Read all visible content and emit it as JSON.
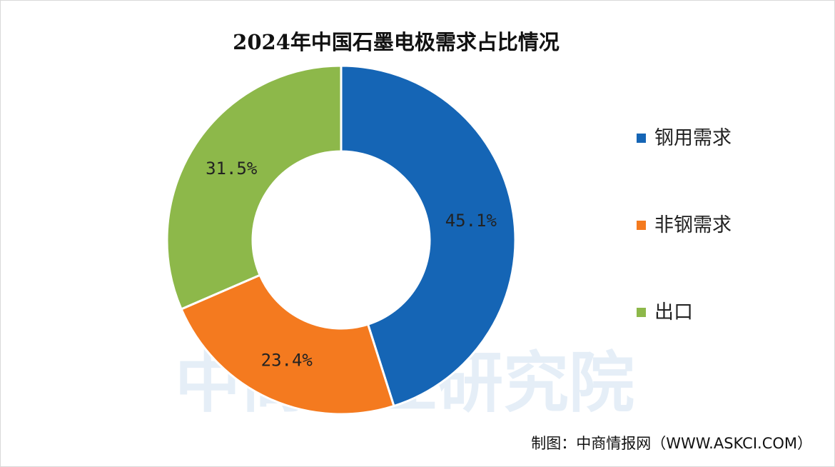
{
  "title": "2024年中国石墨电极需求占比情况",
  "watermark": "中商产业研究院",
  "source": "制图：中商情报网（WWW.ASKCI.COM）",
  "chart_data": {
    "type": "pie",
    "donut": true,
    "title": "2024年中国石墨电极需求占比情况",
    "categories": [
      "钢用需求",
      "非钢需求",
      "出口"
    ],
    "values": [
      45.1,
      23.4,
      31.5
    ],
    "labels": [
      "45.1%",
      "23.4%",
      "31.5%"
    ],
    "unit": "%",
    "colors": [
      "#1565b5",
      "#f47a1f",
      "#8db84a"
    ],
    "legend_position": "right"
  }
}
